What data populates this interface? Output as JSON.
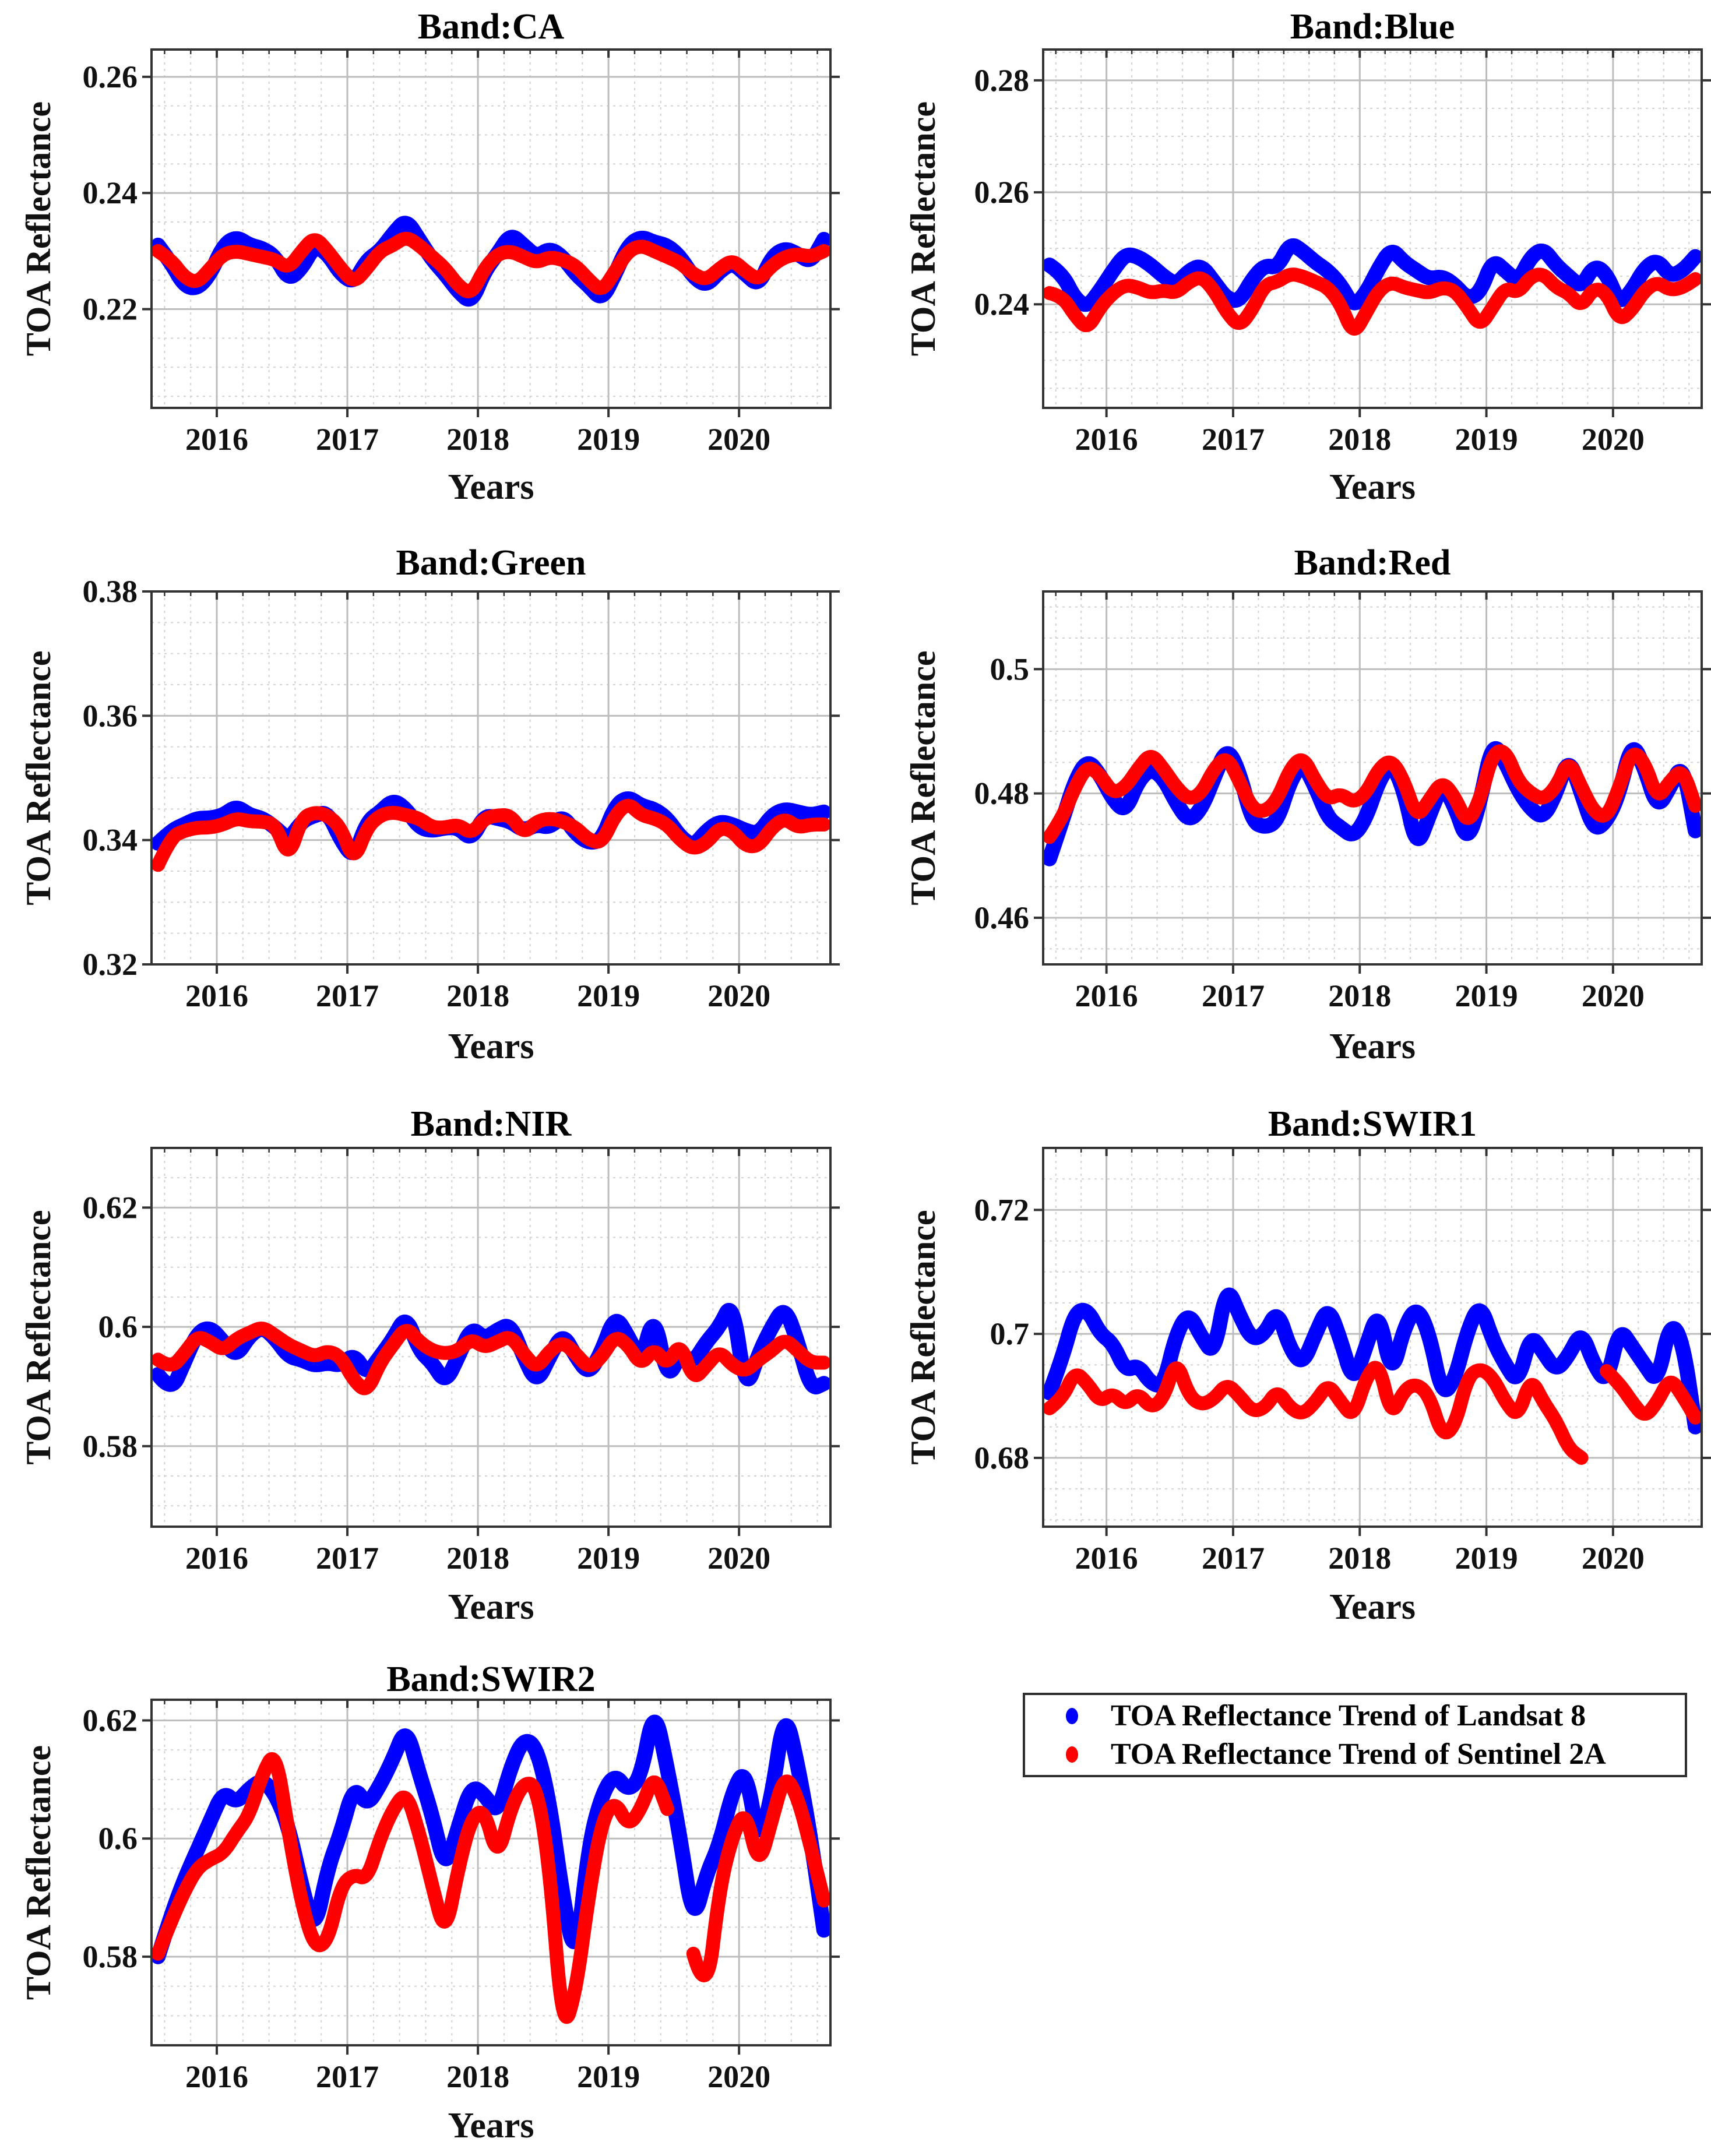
{
  "figure": {
    "background": "#ffffff",
    "xlim": [
      2015.5,
      2020.7
    ],
    "x_ticks": [
      2016,
      2017,
      2018,
      2019,
      2020
    ],
    "x_minor_step": 0.2,
    "time_axis": {
      "start": 2015.55,
      "step": 0.1,
      "count": 52,
      "units": "decimal years"
    },
    "colors": {
      "landsat8": "#0000FF",
      "sentinel2a": "#FF0000",
      "grid_major": "#bdbdbd",
      "grid_minor": "#d2d2d2",
      "axis": "#333333",
      "text": "#111111"
    }
  },
  "legend": {
    "entries": [
      {
        "label": "TOA Reflectance Trend of Landsat 8",
        "color": "#0000FF"
      },
      {
        "label": "TOA Reflectance Trend of Sentinel 2A",
        "color": "#FF0000"
      }
    ]
  },
  "chart_data": [
    {
      "id": "ca",
      "type": "scatter",
      "title": "Band:CA",
      "xlabel": "Years",
      "ylabel": "TOA Reflectance",
      "ylim": [
        0.203,
        0.2647
      ],
      "yticks": [
        0.22,
        0.24,
        0.26
      ],
      "ytick_labels": [
        "0.22",
        "0.24",
        "0.26"
      ],
      "y_minor_step": 0.005,
      "grid": true,
      "series": [
        {
          "name": "TOA Reflectance Trend of Landsat 8",
          "color": "#0000FF",
          "values": [
            0.231,
            0.228,
            0.224,
            0.2235,
            0.226,
            0.231,
            0.2325,
            0.231,
            0.2305,
            0.229,
            0.225,
            0.227,
            0.231,
            0.2295,
            0.226,
            0.2245,
            0.2285,
            0.23,
            0.233,
            0.2355,
            0.232,
            0.2285,
            0.226,
            0.223,
            0.221,
            0.2265,
            0.2295,
            0.233,
            0.231,
            0.229,
            0.2305,
            0.229,
            0.226,
            0.224,
            0.2215,
            0.226,
            0.231,
            0.2325,
            0.2315,
            0.231,
            0.229,
            0.2255,
            0.224,
            0.2265,
            0.228,
            0.226,
            0.224,
            0.229,
            0.2305,
            0.2295,
            0.228,
            0.232
          ]
        },
        {
          "name": "TOA Reflectance Trend of Sentinel 2A",
          "color": "#FF0000",
          "values": [
            0.23,
            0.2285,
            0.2255,
            0.2245,
            0.227,
            0.2295,
            0.23,
            0.2295,
            0.229,
            0.2285,
            0.227,
            0.23,
            0.2325,
            0.23,
            0.227,
            0.2245,
            0.227,
            0.23,
            0.231,
            0.2325,
            0.231,
            0.229,
            0.227,
            0.224,
            0.2225,
            0.227,
            0.2295,
            0.23,
            0.229,
            0.228,
            0.229,
            0.2285,
            0.2275,
            0.225,
            0.223,
            0.2265,
            0.23,
            0.231,
            0.23,
            0.229,
            0.228,
            0.226,
            0.225,
            0.227,
            0.2285,
            0.2265,
            0.225,
            0.2275,
            0.229,
            0.2295,
            0.229,
            0.23
          ]
        }
      ]
    },
    {
      "id": "blue",
      "type": "scatter",
      "title": "Band:Blue",
      "xlabel": "Years",
      "ylabel": "TOA Reflectance",
      "ylim": [
        0.2215,
        0.2855
      ],
      "yticks": [
        0.24,
        0.26,
        0.28
      ],
      "ytick_labels": [
        "0.24",
        "0.26",
        "0.28"
      ],
      "y_minor_step": 0.005,
      "grid": true,
      "series": [
        {
          "name": "TOA Reflectance Trend of Landsat 8",
          "color": "#0000FF",
          "values": [
            0.247,
            0.2455,
            0.241,
            0.2395,
            0.2425,
            0.246,
            0.249,
            0.2485,
            0.247,
            0.245,
            0.2435,
            0.246,
            0.247,
            0.244,
            0.241,
            0.2405,
            0.2445,
            0.247,
            0.2465,
            0.251,
            0.2495,
            0.2475,
            0.246,
            0.2435,
            0.2395,
            0.242,
            0.2465,
            0.25,
            0.2475,
            0.246,
            0.2445,
            0.245,
            0.2435,
            0.241,
            0.242,
            0.248,
            0.246,
            0.244,
            0.2485,
            0.25,
            0.247,
            0.245,
            0.243,
            0.247,
            0.2455,
            0.24,
            0.2425,
            0.2465,
            0.248,
            0.245,
            0.246,
            0.2485
          ]
        },
        {
          "name": "TOA Reflectance Trend of Sentinel 2A",
          "color": "#FF0000",
          "values": [
            0.242,
            0.2415,
            0.238,
            0.2355,
            0.2395,
            0.242,
            0.2435,
            0.243,
            0.242,
            0.2425,
            0.242,
            0.244,
            0.245,
            0.2425,
            0.2385,
            0.236,
            0.239,
            0.2435,
            0.244,
            0.2455,
            0.245,
            0.244,
            0.243,
            0.24,
            0.2345,
            0.2385,
            0.2425,
            0.244,
            0.243,
            0.2425,
            0.242,
            0.243,
            0.2425,
            0.2395,
            0.236,
            0.2395,
            0.243,
            0.242,
            0.245,
            0.2455,
            0.243,
            0.242,
            0.2395,
            0.243,
            0.242,
            0.237,
            0.239,
            0.2425,
            0.244,
            0.2425,
            0.243,
            0.2445
          ]
        }
      ]
    },
    {
      "id": "green",
      "type": "scatter",
      "title": "Band:Green",
      "xlabel": "Years",
      "ylabel": "TOA Reflectance",
      "ylim": [
        0.32,
        0.38
      ],
      "yticks": [
        0.32,
        0.34,
        0.36,
        0.38
      ],
      "ytick_labels": [
        "0.32",
        "0.34",
        "0.36",
        "0.38"
      ],
      "y_minor_step": 0.005,
      "grid": true,
      "series": [
        {
          "name": "TOA Reflectance Trend of Landsat 8",
          "color": "#0000FF",
          "values": [
            0.3395,
            0.3415,
            0.3425,
            0.3435,
            0.3435,
            0.344,
            0.3455,
            0.344,
            0.3435,
            0.342,
            0.34,
            0.343,
            0.344,
            0.3445,
            0.34,
            0.337,
            0.343,
            0.3445,
            0.3465,
            0.345,
            0.342,
            0.3415,
            0.342,
            0.342,
            0.34,
            0.344,
            0.3435,
            0.343,
            0.3415,
            0.3425,
            0.342,
            0.344,
            0.341,
            0.3395,
            0.34,
            0.3455,
            0.347,
            0.3455,
            0.345,
            0.3435,
            0.3405,
            0.339,
            0.3415,
            0.343,
            0.3425,
            0.3415,
            0.341,
            0.344,
            0.345,
            0.3445,
            0.344,
            0.3445
          ]
        },
        {
          "name": "TOA Reflectance Trend of Sentinel 2A",
          "color": "#FF0000",
          "values": [
            0.336,
            0.3405,
            0.3415,
            0.342,
            0.342,
            0.3425,
            0.3435,
            0.343,
            0.343,
            0.3425,
            0.337,
            0.3435,
            0.3445,
            0.344,
            0.342,
            0.3365,
            0.342,
            0.344,
            0.3445,
            0.344,
            0.3435,
            0.342,
            0.342,
            0.3425,
            0.341,
            0.3435,
            0.344,
            0.344,
            0.341,
            0.343,
            0.3435,
            0.343,
            0.342,
            0.34,
            0.3395,
            0.344,
            0.346,
            0.344,
            0.3435,
            0.3425,
            0.34,
            0.3385,
            0.3395,
            0.342,
            0.3415,
            0.339,
            0.339,
            0.342,
            0.3435,
            0.342,
            0.3425,
            0.3425
          ]
        }
      ]
    },
    {
      "id": "red",
      "type": "scatter",
      "title": "Band:Red",
      "xlabel": "Years",
      "ylabel": "TOA Reflectance",
      "ylim": [
        0.4525,
        0.5125
      ],
      "yticks": [
        0.46,
        0.48,
        0.5
      ],
      "ytick_labels": [
        "0.46",
        "0.48",
        "0.5"
      ],
      "y_minor_step": 0.005,
      "grid": true,
      "series": [
        {
          "name": "TOA Reflectance Trend of Landsat 8",
          "color": "#0000FF",
          "values": [
            0.4695,
            0.4755,
            0.482,
            0.4855,
            0.483,
            0.479,
            0.477,
            0.482,
            0.484,
            0.4825,
            0.4785,
            0.4755,
            0.4775,
            0.4825,
            0.4875,
            0.4835,
            0.4755,
            0.4745,
            0.4755,
            0.482,
            0.485,
            0.481,
            0.476,
            0.4745,
            0.473,
            0.476,
            0.482,
            0.485,
            0.4805,
            0.471,
            0.4765,
            0.4815,
            0.478,
            0.472,
            0.4785,
            0.4885,
            0.485,
            0.4805,
            0.4775,
            0.476,
            0.48,
            0.486,
            0.48,
            0.474,
            0.4755,
            0.48,
            0.4885,
            0.484,
            0.4775,
            0.481,
            0.485,
            0.474
          ]
        },
        {
          "name": "TOA Reflectance Trend of Sentinel 2A",
          "color": "#FF0000",
          "values": [
            0.473,
            0.476,
            0.481,
            0.4845,
            0.483,
            0.48,
            0.481,
            0.484,
            0.4865,
            0.484,
            0.481,
            0.479,
            0.48,
            0.484,
            0.486,
            0.482,
            0.4775,
            0.477,
            0.479,
            0.484,
            0.486,
            0.482,
            0.479,
            0.48,
            0.4785,
            0.48,
            0.484,
            0.4855,
            0.482,
            0.476,
            0.479,
            0.482,
            0.4795,
            0.475,
            0.479,
            0.4865,
            0.487,
            0.482,
            0.48,
            0.479,
            0.481,
            0.4855,
            0.481,
            0.477,
            0.476,
            0.481,
            0.487,
            0.485,
            0.479,
            0.482,
            0.484,
            0.478
          ]
        }
      ]
    },
    {
      "id": "nir",
      "type": "scatter",
      "title": "Band:NIR",
      "xlabel": "Years",
      "ylabel": "TOA Reflectance",
      "ylim": [
        0.5665,
        0.63
      ],
      "yticks": [
        0.58,
        0.6,
        0.62
      ],
      "ytick_labels": [
        "0.58",
        "0.6",
        "0.62"
      ],
      "y_minor_step": 0.005,
      "grid": true,
      "series": [
        {
          "name": "TOA Reflectance Trend of Landsat 8",
          "color": "#0000FF",
          "values": [
            0.592,
            0.589,
            0.594,
            0.599,
            0.6,
            0.5975,
            0.595,
            0.5985,
            0.6,
            0.598,
            0.595,
            0.5945,
            0.5935,
            0.594,
            0.5935,
            0.5955,
            0.592,
            0.595,
            0.598,
            0.602,
            0.596,
            0.594,
            0.5905,
            0.595,
            0.6,
            0.598,
            0.5995,
            0.6005,
            0.595,
            0.5905,
            0.595,
            0.599,
            0.595,
            0.592,
            0.596,
            0.602,
            0.5985,
            0.594,
            0.6025,
            0.591,
            0.5955,
            0.594,
            0.5975,
            0.6,
            0.6045,
            0.589,
            0.5955,
            0.6,
            0.6035,
            0.5975,
            0.5895,
            0.5905
          ]
        },
        {
          "name": "TOA Reflectance Trend of Sentinel 2A",
          "color": "#FF0000",
          "values": [
            0.5945,
            0.593,
            0.5955,
            0.5985,
            0.5975,
            0.596,
            0.598,
            0.599,
            0.6,
            0.5985,
            0.597,
            0.596,
            0.595,
            0.596,
            0.595,
            0.591,
            0.589,
            0.594,
            0.597,
            0.6,
            0.5975,
            0.596,
            0.5955,
            0.596,
            0.598,
            0.5965,
            0.5975,
            0.5985,
            0.5955,
            0.593,
            0.596,
            0.5975,
            0.5955,
            0.593,
            0.595,
            0.5985,
            0.597,
            0.5935,
            0.5965,
            0.5935,
            0.5975,
            0.591,
            0.5935,
            0.596,
            0.5935,
            0.5925,
            0.5945,
            0.596,
            0.598,
            0.596,
            0.594,
            0.594
          ]
        }
      ]
    },
    {
      "id": "swir1",
      "type": "scatter",
      "title": "Band:SWIR1",
      "xlabel": "Years",
      "ylabel": "TOA Reflectance",
      "ylim": [
        0.6689,
        0.73
      ],
      "yticks": [
        0.68,
        0.7,
        0.72
      ],
      "ytick_labels": [
        "0.68",
        "0.7",
        "0.72"
      ],
      "y_minor_step": 0.005,
      "grid": true,
      "series": [
        {
          "name": "TOA Reflectance Trend of Landsat 8",
          "color": "#0000FF",
          "values": [
            0.6905,
            0.696,
            0.7035,
            0.704,
            0.7,
            0.6985,
            0.694,
            0.695,
            0.692,
            0.6915,
            0.7,
            0.7035,
            0.6995,
            0.6965,
            0.708,
            0.703,
            0.699,
            0.7,
            0.704,
            0.6975,
            0.695,
            0.7,
            0.7045,
            0.699,
            0.692,
            0.698,
            0.704,
            0.693,
            0.701,
            0.7045,
            0.7,
            0.69,
            0.6925,
            0.7005,
            0.705,
            0.699,
            0.695,
            0.692,
            0.7,
            0.697,
            0.694,
            0.6965,
            0.7005,
            0.695,
            0.692,
            0.701,
            0.698,
            0.695,
            0.692,
            0.702,
            0.699,
            0.685
          ]
        },
        {
          "name": "TOA Reflectance Trend of Sentinel 2A",
          "color": "#FF0000",
          "values": [
            0.688,
            0.6895,
            0.694,
            0.692,
            0.689,
            0.6905,
            0.6885,
            0.6905,
            0.688,
            0.6895,
            0.696,
            0.69,
            0.6885,
            0.6895,
            0.692,
            0.69,
            0.6875,
            0.688,
            0.691,
            0.688,
            0.687,
            0.689,
            0.692,
            0.689,
            0.6865,
            0.693,
            0.6955,
            0.6865,
            0.691,
            0.692,
            0.69,
            0.6835,
            0.685,
            0.693,
            0.6945,
            0.693,
            0.689,
            0.6865,
            0.693,
            0.689,
            0.686,
            0.6815,
            0.68,
            null,
            0.694,
            0.692,
            0.689,
            0.6865,
            0.689,
            0.693,
            0.69,
            0.6865
          ]
        }
      ]
    },
    {
      "id": "swir2",
      "type": "scatter",
      "title": "Band:SWIR2",
      "xlabel": "Years",
      "ylabel": "TOA Reflectance",
      "ylim": [
        0.565,
        0.6235
      ],
      "yticks": [
        0.58,
        0.6,
        0.62
      ],
      "ytick_labels": [
        "0.58",
        "0.6",
        "0.62"
      ],
      "y_minor_step": 0.005,
      "grid": true,
      "series": [
        {
          "name": "TOA Reflectance Trend of Landsat 8",
          "color": "#0000FF",
          "values": [
            0.58,
            0.587,
            0.593,
            0.598,
            0.603,
            0.608,
            0.606,
            0.6085,
            0.61,
            0.6075,
            0.602,
            0.592,
            0.584,
            0.595,
            0.601,
            0.609,
            0.6055,
            0.609,
            0.6135,
            0.619,
            0.611,
            0.604,
            0.5945,
            0.602,
            0.609,
            0.6075,
            0.604,
            0.612,
            0.617,
            0.6155,
            0.606,
            0.59,
            0.579,
            0.599,
            0.6075,
            0.611,
            0.608,
            0.6105,
            0.6225,
            0.612,
            0.6,
            0.5855,
            0.594,
            0.599,
            0.608,
            0.612,
            0.599,
            0.607,
            0.622,
            0.6125,
            0.6,
            0.5845
          ]
        },
        {
          "name": "TOA Reflectance Trend of Sentinel 2A",
          "color": "#FF0000",
          "values": [
            0.5805,
            0.586,
            0.591,
            0.595,
            0.5965,
            0.5975,
            0.601,
            0.604,
            0.611,
            0.615,
            0.601,
            0.589,
            0.5815,
            0.5825,
            0.592,
            0.594,
            0.593,
            0.6,
            0.605,
            0.608,
            0.601,
            0.592,
            0.5835,
            0.595,
            0.6035,
            0.605,
            0.5965,
            0.605,
            0.6095,
            0.609,
            0.595,
            0.567,
            0.574,
            0.5905,
            0.603,
            0.6065,
            0.602,
            0.605,
            0.611,
            0.605,
            null,
            0.5805,
            0.5725,
            0.5915,
            0.6005,
            0.605,
            0.595,
            0.603,
            0.611,
            0.607,
            0.5985,
            0.5895
          ]
        }
      ]
    }
  ]
}
